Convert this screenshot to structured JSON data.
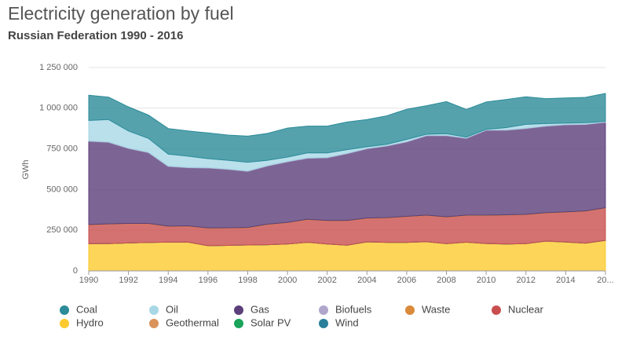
{
  "chart_data": {
    "type": "area",
    "stacked": true,
    "title": "Electricity generation by fuel",
    "subtitle": "Russian Federation 1990 - 2016",
    "y_label": "GWh",
    "x": [
      1990,
      1991,
      1992,
      1993,
      1994,
      1995,
      1996,
      1997,
      1998,
      1999,
      2000,
      2001,
      2002,
      2003,
      2004,
      2005,
      2006,
      2007,
      2008,
      2009,
      2010,
      2011,
      2012,
      2013,
      2014,
      2015,
      2016
    ],
    "xlim": [
      1990,
      2016
    ],
    "xticks": [
      1990,
      1992,
      1994,
      1996,
      1998,
      2000,
      2002,
      2004,
      2006,
      2008,
      2010,
      2012,
      2014,
      {
        "value": 2016,
        "label": "20..."
      }
    ],
    "ylim": [
      0,
      1250000
    ],
    "yticks": [
      0,
      {
        "value": 250000,
        "label": "250 000"
      },
      {
        "value": 500000,
        "label": "500 000"
      },
      {
        "value": 750000,
        "label": "750 000"
      },
      {
        "value": 1000000,
        "label": "1 000 000"
      },
      {
        "value": 1250000,
        "label": "1 250 000"
      }
    ],
    "grid": true,
    "legend": "bottom",
    "series": [
      {
        "name": "Coal",
        "color": "#2b8b98",
        "values": [
          155000,
          138000,
          148000,
          143000,
          157000,
          155000,
          158000,
          155000,
          160000,
          165000,
          178000,
          165000,
          165000,
          170000,
          167000,
          175000,
          185000,
          175000,
          197000,
          170000,
          168000,
          173000,
          170000,
          153000,
          154000,
          156000,
          172000
        ]
      },
      {
        "name": "Oil",
        "color": "#a8d8e6",
        "values": [
          125000,
          137000,
          105000,
          85000,
          73000,
          68000,
          55000,
          53000,
          53000,
          32000,
          27000,
          30000,
          27000,
          22000,
          10000,
          8000,
          13000,
          7000,
          10000,
          5000,
          3000,
          13000,
          23000,
          13000,
          8000,
          8000,
          3000
        ]
      },
      {
        "name": "Gas",
        "color": "#5b3f7a",
        "values": [
          512000,
          501000,
          460000,
          435000,
          367000,
          357000,
          368000,
          359000,
          345000,
          358000,
          372000,
          375000,
          385000,
          410000,
          425000,
          440000,
          457000,
          488000,
          498000,
          472000,
          522000,
          520000,
          527000,
          532000,
          535000,
          531000,
          525000
        ]
      },
      {
        "name": "Biofuels",
        "color": "#b0a6cc",
        "values": [
          3000,
          3000,
          3000,
          3000,
          3000,
          3000,
          3000,
          3000,
          3000,
          3000,
          3000,
          3000,
          3000,
          3000,
          3000,
          3000,
          3000,
          3000,
          3000,
          3000,
          3000,
          3000,
          3000,
          3000,
          3000,
          3000,
          3000
        ]
      },
      {
        "name": "Waste",
        "color": "#d98a3a",
        "values": [
          2000,
          2000,
          2000,
          2000,
          2000,
          2000,
          2000,
          2000,
          2000,
          2000,
          2000,
          2000,
          2000,
          2000,
          2000,
          2000,
          2000,
          2000,
          2000,
          2000,
          2000,
          2000,
          2000,
          2000,
          2000,
          2000,
          2000
        ]
      },
      {
        "name": "Nuclear",
        "color": "#c94f4f",
        "values": [
          116000,
          119000,
          118000,
          115000,
          96000,
          98000,
          107000,
          106000,
          106000,
          124000,
          131000,
          139000,
          143000,
          150000,
          145000,
          150000,
          158000,
          161000,
          163000,
          164000,
          172000,
          177000,
          178000,
          172000,
          183000,
          196000,
          198000
        ]
      },
      {
        "name": "Hydro",
        "color": "#fcca2e",
        "values": [
          167000,
          168000,
          172000,
          175000,
          177000,
          177000,
          155000,
          157000,
          159000,
          161000,
          165000,
          176000,
          165000,
          158000,
          178000,
          175000,
          175000,
          179000,
          167000,
          176000,
          168000,
          165000,
          167000,
          183000,
          177000,
          170000,
          187000
        ]
      },
      {
        "name": "Geothermal",
        "color": "#d9935a",
        "values": [
          0,
          0,
          0,
          0,
          0,
          0,
          0,
          30,
          30,
          30,
          30,
          50,
          100,
          300,
          400,
          450,
          450,
          500,
          500,
          500,
          500,
          500,
          500,
          500,
          500,
          500,
          500
        ]
      },
      {
        "name": "Solar PV",
        "color": "#1aa35a",
        "values": [
          0,
          0,
          0,
          0,
          0,
          0,
          0,
          0,
          0,
          0,
          0,
          0,
          0,
          0,
          0,
          0,
          0,
          0,
          0,
          0,
          0,
          0,
          0,
          0,
          200,
          200,
          500
        ]
      },
      {
        "name": "Wind",
        "color": "#2a7f9a",
        "values": [
          0,
          0,
          0,
          0,
          0,
          0,
          0,
          0,
          0,
          0,
          0,
          0,
          0,
          0,
          0,
          0,
          0,
          0,
          0,
          0,
          0,
          0,
          0,
          0,
          100,
          100,
          100
        ]
      }
    ]
  }
}
